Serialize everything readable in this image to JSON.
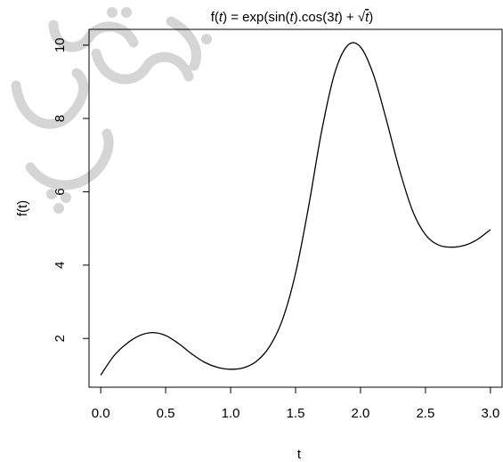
{
  "watermark": {
    "color": "#d5d5d5"
  },
  "chart_data": {
    "type": "line",
    "title": "",
    "title_parts": [
      "f(",
      "t",
      ") = exp(sin(",
      "t",
      ").cos(3",
      "t",
      ") + ",
      "√",
      "t",
      ")"
    ],
    "xlabel": "t",
    "ylabel": "f(t)",
    "xlim": [
      -0.09,
      3.09
    ],
    "ylim": [
      0.67,
      10.43
    ],
    "x_ticks": [
      "0.0",
      "0.5",
      "1.0",
      "1.5",
      "2.0",
      "2.5",
      "3.0"
    ],
    "x_tick_values": [
      0,
      0.5,
      1.0,
      1.5,
      2.0,
      2.5,
      3.0
    ],
    "y_ticks": [
      "2",
      "4",
      "6",
      "8",
      "10"
    ],
    "y_tick_values": [
      2,
      4,
      6,
      8,
      10
    ],
    "grid": false,
    "legend": "none",
    "series": [
      {
        "x": [
          0.0,
          0.1,
          0.2,
          0.3,
          0.4,
          0.5,
          0.6,
          0.7,
          0.8,
          0.9,
          1.0,
          1.1,
          1.2,
          1.3,
          1.4,
          1.5,
          1.6,
          1.7,
          1.8,
          1.9,
          2.0,
          2.1,
          2.2,
          2.3,
          2.4,
          2.5,
          2.6,
          2.7,
          2.8,
          2.9,
          3.0
        ],
        "y": [
          1.0,
          1.52,
          1.86,
          2.08,
          2.16,
          2.08,
          1.86,
          1.58,
          1.35,
          1.21,
          1.16,
          1.2,
          1.38,
          1.78,
          2.52,
          3.78,
          5.59,
          7.64,
          9.22,
          9.99,
          9.95,
          9.19,
          7.95,
          6.6,
          5.49,
          4.83,
          4.55,
          4.49,
          4.54,
          4.7,
          4.97
        ]
      }
    ]
  }
}
